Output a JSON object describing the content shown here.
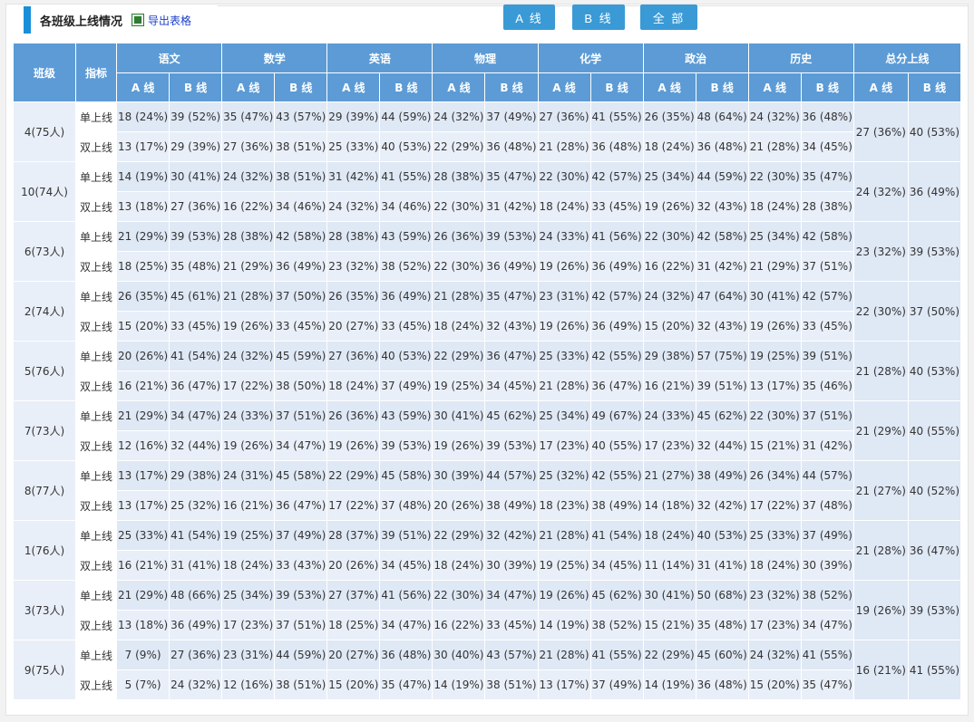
{
  "title": "各班级上线情况",
  "export_label": "导出表格",
  "buttons": {
    "a_line": "A 线",
    "b_line": "B 线",
    "all": "全 部"
  },
  "table": {
    "col_class": "班级",
    "col_indicator": "指标",
    "subjects": [
      "语文",
      "数学",
      "英语",
      "物理",
      "化学",
      "政治",
      "历史",
      "总分上线"
    ],
    "sub_a": "A 线",
    "sub_b": "B 线",
    "row_single": "单上线",
    "row_double": "双上线",
    "rows": [
      {
        "cls": "4(75人)",
        "single": [
          "18 (24%)",
          "39 (52%)",
          "35 (47%)",
          "43 (57%)",
          "29 (39%)",
          "44 (59%)",
          "24 (32%)",
          "37 (49%)",
          "27 (36%)",
          "41 (55%)",
          "26 (35%)",
          "48 (64%)",
          "24 (32%)",
          "36 (48%)"
        ],
        "double": [
          "13 (17%)",
          "29 (39%)",
          "27 (36%)",
          "38 (51%)",
          "25 (33%)",
          "40 (53%)",
          "22 (29%)",
          "36 (48%)",
          "21 (28%)",
          "36 (48%)",
          "18 (24%)",
          "36 (48%)",
          "21 (28%)",
          "34 (45%)"
        ],
        "total": [
          "27 (36%)",
          "40 (53%)"
        ]
      },
      {
        "cls": "10(74人)",
        "single": [
          "14 (19%)",
          "30 (41%)",
          "24 (32%)",
          "38 (51%)",
          "31 (42%)",
          "41 (55%)",
          "28 (38%)",
          "35 (47%)",
          "22 (30%)",
          "42 (57%)",
          "25 (34%)",
          "44 (59%)",
          "22 (30%)",
          "35 (47%)"
        ],
        "double": [
          "13 (18%)",
          "27 (36%)",
          "16 (22%)",
          "34 (46%)",
          "24 (32%)",
          "34 (46%)",
          "22 (30%)",
          "31 (42%)",
          "18 (24%)",
          "33 (45%)",
          "19 (26%)",
          "32 (43%)",
          "18 (24%)",
          "28 (38%)"
        ],
        "total": [
          "24 (32%)",
          "36 (49%)"
        ]
      },
      {
        "cls": "6(73人)",
        "single": [
          "21 (29%)",
          "39 (53%)",
          "28 (38%)",
          "42 (58%)",
          "28 (38%)",
          "43 (59%)",
          "26 (36%)",
          "39 (53%)",
          "24 (33%)",
          "41 (56%)",
          "22 (30%)",
          "42 (58%)",
          "25 (34%)",
          "42 (58%)"
        ],
        "double": [
          "18 (25%)",
          "35 (48%)",
          "21 (29%)",
          "36 (49%)",
          "23 (32%)",
          "38 (52%)",
          "22 (30%)",
          "36 (49%)",
          "19 (26%)",
          "36 (49%)",
          "16 (22%)",
          "31 (42%)",
          "21 (29%)",
          "37 (51%)"
        ],
        "total": [
          "23 (32%)",
          "39 (53%)"
        ]
      },
      {
        "cls": "2(74人)",
        "single": [
          "26 (35%)",
          "45 (61%)",
          "21 (28%)",
          "37 (50%)",
          "26 (35%)",
          "36 (49%)",
          "21 (28%)",
          "35 (47%)",
          "23 (31%)",
          "42 (57%)",
          "24 (32%)",
          "47 (64%)",
          "30 (41%)",
          "42 (57%)"
        ],
        "double": [
          "15 (20%)",
          "33 (45%)",
          "19 (26%)",
          "33 (45%)",
          "20 (27%)",
          "33 (45%)",
          "18 (24%)",
          "32 (43%)",
          "19 (26%)",
          "36 (49%)",
          "15 (20%)",
          "32 (43%)",
          "19 (26%)",
          "33 (45%)"
        ],
        "total": [
          "22 (30%)",
          "37 (50%)"
        ]
      },
      {
        "cls": "5(76人)",
        "single": [
          "20 (26%)",
          "41 (54%)",
          "24 (32%)",
          "45 (59%)",
          "27 (36%)",
          "40 (53%)",
          "22 (29%)",
          "36 (47%)",
          "25 (33%)",
          "42 (55%)",
          "29 (38%)",
          "57 (75%)",
          "19 (25%)",
          "39 (51%)"
        ],
        "double": [
          "16 (21%)",
          "36 (47%)",
          "17 (22%)",
          "38 (50%)",
          "18 (24%)",
          "37 (49%)",
          "19 (25%)",
          "34 (45%)",
          "21 (28%)",
          "36 (47%)",
          "16 (21%)",
          "39 (51%)",
          "13 (17%)",
          "35 (46%)"
        ],
        "total": [
          "21 (28%)",
          "40 (53%)"
        ]
      },
      {
        "cls": "7(73人)",
        "single": [
          "21 (29%)",
          "34 (47%)",
          "24 (33%)",
          "37 (51%)",
          "26 (36%)",
          "43 (59%)",
          "30 (41%)",
          "45 (62%)",
          "25 (34%)",
          "49 (67%)",
          "24 (33%)",
          "45 (62%)",
          "22 (30%)",
          "37 (51%)"
        ],
        "double": [
          "12 (16%)",
          "32 (44%)",
          "19 (26%)",
          "34 (47%)",
          "19 (26%)",
          "39 (53%)",
          "19 (26%)",
          "39 (53%)",
          "17 (23%)",
          "40 (55%)",
          "17 (23%)",
          "32 (44%)",
          "15 (21%)",
          "31 (42%)"
        ],
        "total": [
          "21 (29%)",
          "40 (55%)"
        ]
      },
      {
        "cls": "8(77人)",
        "single": [
          "13 (17%)",
          "29 (38%)",
          "24 (31%)",
          "45 (58%)",
          "22 (29%)",
          "45 (58%)",
          "30 (39%)",
          "44 (57%)",
          "25 (32%)",
          "42 (55%)",
          "21 (27%)",
          "38 (49%)",
          "26 (34%)",
          "44 (57%)"
        ],
        "double": [
          "13 (17%)",
          "25 (32%)",
          "16 (21%)",
          "36 (47%)",
          "17 (22%)",
          "37 (48%)",
          "20 (26%)",
          "38 (49%)",
          "18 (23%)",
          "38 (49%)",
          "14 (18%)",
          "32 (42%)",
          "17 (22%)",
          "37 (48%)"
        ],
        "total": [
          "21 (27%)",
          "40 (52%)"
        ]
      },
      {
        "cls": "1(76人)",
        "single": [
          "25 (33%)",
          "41 (54%)",
          "19 (25%)",
          "37 (49%)",
          "28 (37%)",
          "39 (51%)",
          "22 (29%)",
          "32 (42%)",
          "21 (28%)",
          "41 (54%)",
          "18 (24%)",
          "40 (53%)",
          "25 (33%)",
          "37 (49%)"
        ],
        "double": [
          "16 (21%)",
          "31 (41%)",
          "18 (24%)",
          "33 (43%)",
          "20 (26%)",
          "34 (45%)",
          "18 (24%)",
          "30 (39%)",
          "19 (25%)",
          "34 (45%)",
          "11 (14%)",
          "31 (41%)",
          "18 (24%)",
          "30 (39%)"
        ],
        "total": [
          "21 (28%)",
          "36 (47%)"
        ]
      },
      {
        "cls": "3(73人)",
        "single": [
          "21 (29%)",
          "48 (66%)",
          "25 (34%)",
          "39 (53%)",
          "27 (37%)",
          "41 (56%)",
          "22 (30%)",
          "34 (47%)",
          "19 (26%)",
          "45 (62%)",
          "30 (41%)",
          "50 (68%)",
          "23 (32%)",
          "38 (52%)"
        ],
        "double": [
          "13 (18%)",
          "36 (49%)",
          "17 (23%)",
          "37 (51%)",
          "18 (25%)",
          "34 (47%)",
          "16 (22%)",
          "33 (45%)",
          "14 (19%)",
          "38 (52%)",
          "15 (21%)",
          "35 (48%)",
          "17 (23%)",
          "34 (47%)"
        ],
        "total": [
          "19 (26%)",
          "39 (53%)"
        ]
      },
      {
        "cls": "9(75人)",
        "single": [
          "7 (9%)",
          "27 (36%)",
          "23 (31%)",
          "44 (59%)",
          "20 (27%)",
          "36 (48%)",
          "30 (40%)",
          "43 (57%)",
          "21 (28%)",
          "41 (55%)",
          "22 (29%)",
          "45 (60%)",
          "24 (32%)",
          "41 (55%)"
        ],
        "double": [
          "5 (7%)",
          "24 (32%)",
          "12 (16%)",
          "38 (51%)",
          "15 (20%)",
          "35 (47%)",
          "14 (19%)",
          "38 (51%)",
          "13 (17%)",
          "37 (49%)",
          "14 (19%)",
          "36 (48%)",
          "15 (20%)",
          "35 (47%)"
        ],
        "total": [
          "16 (21%)",
          "41 (55%)"
        ]
      }
    ]
  }
}
